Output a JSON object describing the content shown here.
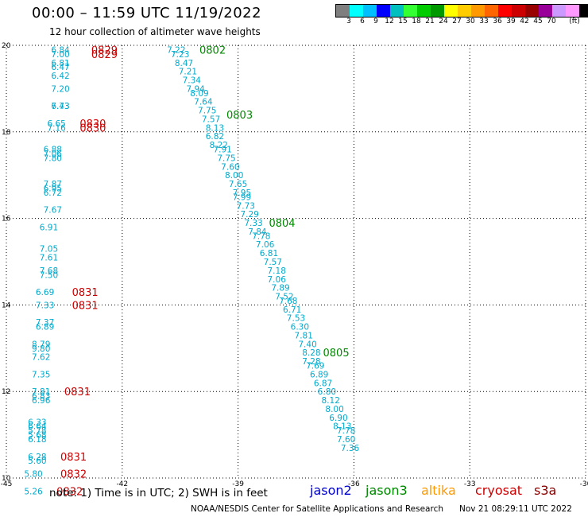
{
  "header": {
    "title": "00:00 – 11:59 UTC 11/19/2022",
    "subtitle": "12 hour collection of altimeter wave heights"
  },
  "colorbar": {
    "colors": [
      "#7f7f7f",
      "#00ffff",
      "#00bfff",
      "#0000ff",
      "#00bfbf",
      "#33ff33",
      "#00cc00",
      "#009900",
      "#ffff00",
      "#ffcc00",
      "#ff9900",
      "#ff6600",
      "#ff0000",
      "#cc0000",
      "#990000",
      "#990099",
      "#cc99ff",
      "#ff99ff",
      "#000000"
    ],
    "labels": [
      "3",
      "6",
      "9",
      "12",
      "15",
      "18",
      "21",
      "24",
      "27",
      "30",
      "33",
      "36",
      "39",
      "42",
      "45",
      "70",
      "(ft)"
    ]
  },
  "footer": {
    "note": "note: 1) Time is in UTC; 2) SWH is in feet",
    "credit": "NOAA/NESDIS Center for Satellite Applications and Research",
    "timestamp": "Nov 21 08:29:11 UTC 2022"
  },
  "satellites": [
    {
      "name": "jason2",
      "color": "#0000cc"
    },
    {
      "name": "jason3",
      "color": "#008800"
    },
    {
      "name": "altika",
      "color": "#ff9900"
    },
    {
      "name": "cryosat",
      "color": "#cc0000"
    },
    {
      "name": "s3a",
      "color": "#880000"
    }
  ],
  "chart_data": {
    "type": "scatter",
    "title": "00:00 – 11:59 UTC 11/19/2022",
    "subtitle": "12 hour collection of altimeter wave heights",
    "xlim": [
      -45,
      -30
    ],
    "ylim": [
      10,
      20
    ],
    "x_ticks": [
      -45,
      -42,
      -39,
      -36,
      -33,
      -30
    ],
    "y_ticks": [
      10,
      12,
      14,
      16,
      18,
      20
    ],
    "grid": true,
    "units": "ft",
    "tracks": [
      {
        "satellite": "jason3",
        "color": "#00aacc",
        "points": [
          {
            "x": -40.6,
            "y": 19.9,
            "v": "7.22"
          },
          {
            "x": -40.5,
            "y": 19.8,
            "v": "7.23"
          },
          {
            "x": -40.4,
            "y": 19.6,
            "v": "8.47"
          },
          {
            "x": -40.3,
            "y": 19.4,
            "v": "7.21"
          },
          {
            "x": -40.2,
            "y": 19.2,
            "v": "7.34"
          },
          {
            "x": -40.1,
            "y": 19.0,
            "v": "7.94"
          },
          {
            "x": -40.0,
            "y": 18.9,
            "v": "8.09"
          },
          {
            "x": -39.9,
            "y": 18.7,
            "v": "7.64"
          },
          {
            "x": -39.8,
            "y": 18.5,
            "v": "7.75"
          },
          {
            "x": -39.7,
            "y": 18.3,
            "v": "7.57"
          },
          {
            "x": -39.6,
            "y": 18.1,
            "v": "8.13"
          },
          {
            "x": -39.6,
            "y": 17.9,
            "v": "6.82"
          },
          {
            "x": -39.5,
            "y": 17.7,
            "v": "8.22"
          },
          {
            "x": -39.4,
            "y": 17.6,
            "v": "7.91"
          },
          {
            "x": -39.3,
            "y": 17.4,
            "v": "7.75"
          },
          {
            "x": -39.2,
            "y": 17.2,
            "v": "7.60"
          },
          {
            "x": -39.1,
            "y": 17.0,
            "v": "8.00"
          },
          {
            "x": -39.0,
            "y": 16.8,
            "v": "7.65"
          },
          {
            "x": -38.9,
            "y": 16.6,
            "v": "7.95"
          },
          {
            "x": -38.9,
            "y": 16.5,
            "v": "7.99"
          },
          {
            "x": -38.8,
            "y": 16.3,
            "v": "7.73"
          },
          {
            "x": -38.7,
            "y": 16.1,
            "v": "7.29"
          },
          {
            "x": -38.6,
            "y": 15.9,
            "v": "7.33"
          },
          {
            "x": -38.5,
            "y": 15.7,
            "v": "7.84"
          },
          {
            "x": -38.4,
            "y": 15.6,
            "v": "7.78"
          },
          {
            "x": -38.3,
            "y": 15.4,
            "v": "7.06"
          },
          {
            "x": -38.2,
            "y": 15.2,
            "v": "6.81"
          },
          {
            "x": -38.1,
            "y": 15.0,
            "v": "7.57"
          },
          {
            "x": -38.0,
            "y": 14.8,
            "v": "7.18"
          },
          {
            "x": -38.0,
            "y": 14.6,
            "v": "7.06"
          },
          {
            "x": -37.9,
            "y": 14.4,
            "v": "7.89"
          },
          {
            "x": -37.8,
            "y": 14.2,
            "v": "7.52"
          },
          {
            "x": -37.7,
            "y": 14.1,
            "v": "7.68"
          },
          {
            "x": -37.6,
            "y": 13.9,
            "v": "6.71"
          },
          {
            "x": -37.5,
            "y": 13.7,
            "v": "7.53"
          },
          {
            "x": -37.4,
            "y": 13.5,
            "v": "6.30"
          },
          {
            "x": -37.3,
            "y": 13.3,
            "v": "7.81"
          },
          {
            "x": -37.2,
            "y": 13.1,
            "v": "7.40"
          },
          {
            "x": -37.1,
            "y": 12.9,
            "v": "8.28"
          },
          {
            "x": -37.1,
            "y": 12.7,
            "v": "7.28"
          },
          {
            "x": -37.0,
            "y": 12.6,
            "v": "7.69"
          },
          {
            "x": -36.9,
            "y": 12.4,
            "v": "6.89"
          },
          {
            "x": -36.8,
            "y": 12.2,
            "v": "6.87"
          },
          {
            "x": -36.7,
            "y": 12.0,
            "v": "6.80"
          },
          {
            "x": -36.6,
            "y": 11.8,
            "v": "8.12"
          },
          {
            "x": -36.5,
            "y": 11.6,
            "v": "8.00"
          },
          {
            "x": -36.4,
            "y": 11.4,
            "v": "6.90"
          },
          {
            "x": -36.3,
            "y": 11.2,
            "v": "8.13"
          },
          {
            "x": -36.2,
            "y": 11.1,
            "v": "7.78"
          },
          {
            "x": -36.2,
            "y": 10.9,
            "v": "7.60"
          },
          {
            "x": -36.1,
            "y": 10.7,
            "v": "7.36"
          }
        ]
      },
      {
        "satellite": "cryosat",
        "color": "#00aacc",
        "points": [
          {
            "x": -43.6,
            "y": 19.9,
            "v": "6.84"
          },
          {
            "x": -43.6,
            "y": 19.8,
            "v": "7.00"
          },
          {
            "x": -43.6,
            "y": 19.6,
            "v": "6.81"
          },
          {
            "x": -43.6,
            "y": 19.5,
            "v": "6.47"
          },
          {
            "x": -43.6,
            "y": 19.3,
            "v": "6.42"
          },
          {
            "x": -43.6,
            "y": 19.0,
            "v": "7.20"
          },
          {
            "x": -43.6,
            "y": 18.6,
            "v": "7.43"
          },
          {
            "x": -43.6,
            "y": 18.6,
            "v": "6.73"
          },
          {
            "x": -43.7,
            "y": 18.2,
            "v": "6.65"
          },
          {
            "x": -43.7,
            "y": 18.1,
            "v": "7.16"
          },
          {
            "x": -43.8,
            "y": 17.6,
            "v": "6.88"
          },
          {
            "x": -43.8,
            "y": 17.5,
            "v": "7.06"
          },
          {
            "x": -43.8,
            "y": 17.4,
            "v": "7.80"
          },
          {
            "x": -43.8,
            "y": 16.8,
            "v": "7.87"
          },
          {
            "x": -43.8,
            "y": 16.7,
            "v": "6.95"
          },
          {
            "x": -43.8,
            "y": 16.6,
            "v": "6.72"
          },
          {
            "x": -43.8,
            "y": 16.2,
            "v": "7.67"
          },
          {
            "x": -43.9,
            "y": 15.8,
            "v": "6.91"
          },
          {
            "x": -43.9,
            "y": 15.3,
            "v": "7.05"
          },
          {
            "x": -43.9,
            "y": 15.1,
            "v": "7.61"
          },
          {
            "x": -43.9,
            "y": 14.8,
            "v": "7.68"
          },
          {
            "x": -43.9,
            "y": 14.7,
            "v": "7.50"
          },
          {
            "x": -44.0,
            "y": 14.3,
            "v": "6.69"
          },
          {
            "x": -44.0,
            "y": 14.0,
            "v": "7.33"
          },
          {
            "x": -44.0,
            "y": 13.6,
            "v": "7.37"
          },
          {
            "x": -44.0,
            "y": 13.5,
            "v": "6.89"
          },
          {
            "x": -44.1,
            "y": 13.1,
            "v": "8.79"
          },
          {
            "x": -44.1,
            "y": 13.0,
            "v": "9.80"
          },
          {
            "x": -44.1,
            "y": 12.8,
            "v": "7.62"
          },
          {
            "x": -44.1,
            "y": 12.4,
            "v": "7.35"
          },
          {
            "x": -44.1,
            "y": 12.0,
            "v": "7.81"
          },
          {
            "x": -44.1,
            "y": 11.9,
            "v": "6.83"
          },
          {
            "x": -44.1,
            "y": 11.8,
            "v": "6.96"
          },
          {
            "x": -44.2,
            "y": 11.3,
            "v": "6.33"
          },
          {
            "x": -44.2,
            "y": 11.2,
            "v": "6.64"
          },
          {
            "x": -44.2,
            "y": 11.1,
            "v": "5.78"
          },
          {
            "x": -44.2,
            "y": 11.0,
            "v": "5.68"
          },
          {
            "x": -44.2,
            "y": 10.9,
            "v": "6.18"
          },
          {
            "x": -44.2,
            "y": 10.5,
            "v": "6.28"
          },
          {
            "x": -44.2,
            "y": 10.4,
            "v": "5.60"
          },
          {
            "x": -44.3,
            "y": 10.1,
            "v": "5.80"
          },
          {
            "x": -44.3,
            "y": 9.7,
            "v": "5.26"
          }
        ]
      }
    ],
    "time_labels": [
      {
        "x": -40.0,
        "y": 19.9,
        "text": "0802",
        "satellite": "jason3"
      },
      {
        "x": -39.3,
        "y": 18.4,
        "text": "0803",
        "satellite": "jason3"
      },
      {
        "x": -38.2,
        "y": 15.9,
        "text": "0804",
        "satellite": "jason3"
      },
      {
        "x": -36.8,
        "y": 12.9,
        "text": "0805",
        "satellite": "jason3"
      },
      {
        "x": -42.8,
        "y": 19.9,
        "text": "0829",
        "satellite": "cryosat"
      },
      {
        "x": -42.8,
        "y": 19.8,
        "text": "0829",
        "satellite": "cryosat"
      },
      {
        "x": -43.1,
        "y": 18.2,
        "text": "0830",
        "satellite": "cryosat"
      },
      {
        "x": -43.1,
        "y": 18.1,
        "text": "0830",
        "satellite": "cryosat"
      },
      {
        "x": -43.3,
        "y": 14.3,
        "text": "0831",
        "satellite": "cryosat"
      },
      {
        "x": -43.3,
        "y": 14.0,
        "text": "0831",
        "satellite": "cryosat"
      },
      {
        "x": -43.5,
        "y": 12.0,
        "text": "0831",
        "satellite": "cryosat"
      },
      {
        "x": -43.6,
        "y": 10.5,
        "text": "0831",
        "satellite": "cryosat"
      },
      {
        "x": -43.6,
        "y": 10.1,
        "text": "0832",
        "satellite": "cryosat"
      },
      {
        "x": -43.7,
        "y": 9.7,
        "text": "0832",
        "satellite": "cryosat"
      }
    ]
  }
}
